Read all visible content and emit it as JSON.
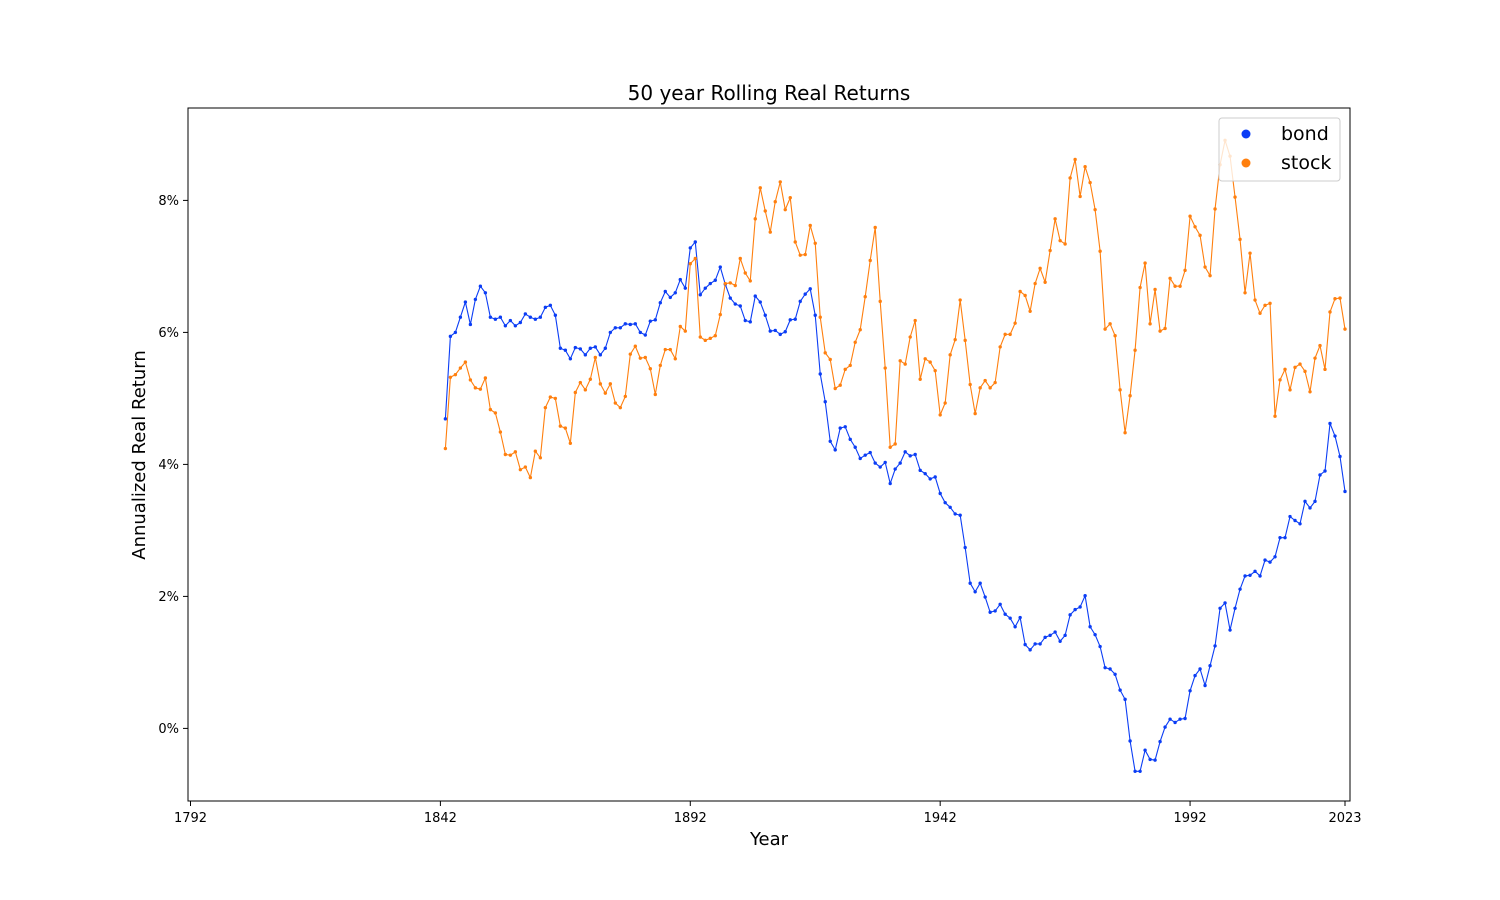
{
  "chart_data": {
    "type": "line",
    "title": "50 year Rolling Real Returns",
    "xlabel": "Year",
    "ylabel": "Annualized Real Return",
    "xlim": [
      1791.5,
      2024
    ],
    "ylim": [
      -1.1,
      9.4
    ],
    "x_ticks": [
      1792,
      1842,
      1892,
      1942,
      1992,
      2023
    ],
    "x_tick_labels": [
      "1792",
      "1842",
      "1892",
      "1942",
      "1992",
      "2023"
    ],
    "y_ticks": [
      0,
      2,
      4,
      6,
      8
    ],
    "y_tick_labels": [
      "0%",
      "2%",
      "4%",
      "6%",
      "8%"
    ],
    "grid": false,
    "legend": {
      "position": "top-right"
    },
    "x_start": 1843,
    "series": [
      {
        "name": "bond",
        "color": "#0b3df5",
        "values": [
          4.69,
          5.94,
          6.0,
          6.23,
          6.46,
          6.12,
          6.5,
          6.7,
          6.6,
          6.23,
          6.2,
          6.23,
          6.1,
          6.18,
          6.1,
          6.15,
          6.28,
          6.23,
          6.2,
          6.23,
          6.38,
          6.41,
          6.26,
          5.76,
          5.73,
          5.6,
          5.77,
          5.75,
          5.66,
          5.76,
          5.78,
          5.66,
          5.76,
          6.0,
          6.07,
          6.07,
          6.13,
          6.12,
          6.13,
          6.0,
          5.96,
          6.17,
          6.19,
          6.45,
          6.62,
          6.53,
          6.6,
          6.8,
          6.67,
          7.28,
          7.37,
          6.57,
          6.67,
          6.74,
          6.79,
          6.99,
          6.73,
          6.52,
          6.43,
          6.4,
          6.18,
          6.16,
          6.55,
          6.46,
          6.26,
          6.02,
          6.03,
          5.97,
          6.01,
          6.19,
          6.2,
          6.47,
          6.58,
          6.66,
          6.26,
          5.37,
          4.95,
          4.35,
          4.22,
          4.55,
          4.57,
          4.38,
          4.26,
          4.09,
          4.14,
          4.18,
          4.02,
          3.96,
          4.03,
          3.71,
          3.93,
          4.02,
          4.19,
          4.13,
          4.15,
          3.91,
          3.86,
          3.78,
          3.81,
          3.56,
          3.42,
          3.35,
          3.25,
          3.23,
          2.74,
          2.2,
          2.07,
          2.2,
          1.99,
          1.76,
          1.78,
          1.88,
          1.73,
          1.67,
          1.54,
          1.68,
          1.27,
          1.19,
          1.28,
          1.28,
          1.38,
          1.41,
          1.46,
          1.32,
          1.41,
          1.72,
          1.8,
          1.84,
          2.01,
          1.54,
          1.42,
          1.24,
          0.92,
          0.9,
          0.82,
          0.58,
          0.44,
          -0.19,
          -0.65,
          -0.65,
          -0.33,
          -0.47,
          -0.48,
          -0.2,
          0.02,
          0.14,
          0.09,
          0.14,
          0.15,
          0.57,
          0.8,
          0.9,
          0.65,
          0.95,
          1.25,
          1.82,
          1.9,
          1.49,
          1.82,
          2.11,
          2.31,
          2.32,
          2.38,
          2.31,
          2.55,
          2.52,
          2.6,
          2.89,
          2.89,
          3.21,
          3.15,
          3.1,
          3.44,
          3.34,
          3.44,
          3.84,
          3.9,
          4.62,
          4.43,
          4.12,
          3.59
        ]
      },
      {
        "name": "stock",
        "color": "#ff7f0e",
        "values": [
          4.24,
          5.32,
          5.36,
          5.46,
          5.55,
          5.28,
          5.16,
          5.14,
          5.31,
          4.83,
          4.78,
          4.49,
          4.15,
          4.14,
          4.19,
          3.92,
          3.96,
          3.8,
          4.2,
          4.1,
          4.86,
          5.02,
          5.0,
          4.58,
          4.55,
          4.32,
          5.09,
          5.24,
          5.13,
          5.29,
          5.62,
          5.22,
          5.08,
          5.22,
          4.93,
          4.86,
          5.03,
          5.67,
          5.79,
          5.61,
          5.62,
          5.45,
          5.06,
          5.5,
          5.74,
          5.74,
          5.6,
          6.09,
          6.02,
          7.04,
          7.12,
          5.93,
          5.88,
          5.91,
          5.95,
          6.27,
          6.74,
          6.75,
          6.71,
          7.12,
          6.9,
          6.78,
          7.72,
          8.19,
          7.84,
          7.52,
          7.98,
          8.28,
          7.86,
          8.04,
          7.37,
          7.17,
          7.18,
          7.62,
          7.35,
          6.23,
          5.69,
          5.59,
          5.15,
          5.2,
          5.44,
          5.5,
          5.85,
          6.04,
          6.54,
          7.09,
          7.59,
          6.47,
          5.46,
          4.26,
          4.31,
          5.57,
          5.52,
          5.93,
          6.18,
          5.29,
          5.6,
          5.55,
          5.42,
          4.75,
          4.93,
          5.66,
          5.89,
          6.49,
          5.88,
          5.21,
          4.77,
          5.16,
          5.27,
          5.16,
          5.24,
          5.78,
          5.97,
          5.97,
          6.14,
          6.62,
          6.56,
          6.32,
          6.74,
          6.97,
          6.76,
          7.24,
          7.72,
          7.39,
          7.34,
          8.34,
          8.62,
          8.06,
          8.51,
          8.27,
          7.86,
          7.23,
          6.05,
          6.13,
          5.95,
          5.13,
          4.48,
          5.04,
          5.73,
          6.68,
          7.05,
          6.13,
          6.65,
          6.02,
          6.06,
          6.82,
          6.7,
          6.7,
          6.94,
          7.76,
          7.6,
          7.47,
          6.99,
          6.86,
          7.87,
          8.54,
          8.91,
          8.67,
          8.05,
          7.41,
          6.6,
          7.2,
          6.49,
          6.29,
          6.41,
          6.44,
          4.73,
          5.28,
          5.44,
          5.13,
          5.47,
          5.52,
          5.41,
          5.1,
          5.61,
          5.8,
          5.44,
          6.31,
          6.51,
          6.52,
          6.05
        ]
      }
    ]
  }
}
